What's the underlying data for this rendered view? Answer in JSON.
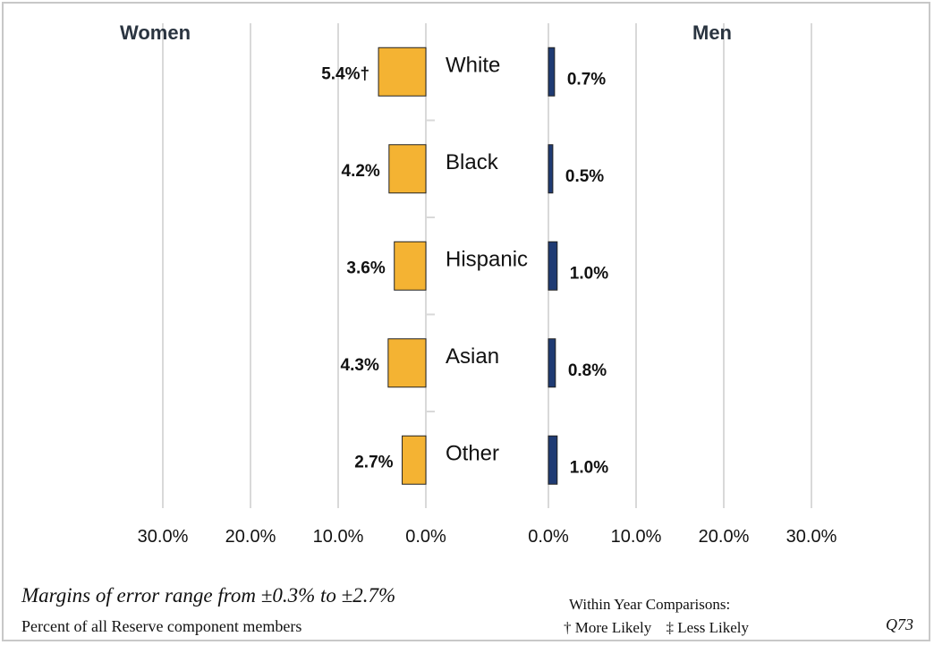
{
  "chart_data": {
    "type": "bar",
    "orientation": "horizontal-butterfly",
    "panels": {
      "left": "Women",
      "right": "Men"
    },
    "categories": [
      "White",
      "Black",
      "Hispanic",
      "Asian",
      "Other"
    ],
    "series": [
      {
        "name": "Women",
        "values": [
          5.4,
          4.2,
          3.6,
          4.3,
          2.7
        ],
        "labels": [
          "5.4%†",
          "4.2%",
          "3.6%",
          "4.3%",
          "2.7%"
        ],
        "color": "#f4b333"
      },
      {
        "name": "Men",
        "values": [
          0.7,
          0.5,
          1.0,
          0.8,
          1.0
        ],
        "labels": [
          "0.7%",
          "0.5%",
          "1.0%",
          "0.8%",
          "1.0%"
        ],
        "color": "#1f3b73"
      }
    ],
    "xlim": [
      0,
      30
    ],
    "left_tick_labels": [
      "30.0%",
      "20.0%",
      "10.0%",
      "0.0%"
    ],
    "right_tick_labels": [
      "0.0%",
      "10.0%",
      "20.0%",
      "30.0%"
    ],
    "grid": true
  },
  "footer": {
    "margins_note": "Margins of error range from ±0.3%  to ±2.7%",
    "population_note": "Percent of all Reserve component members",
    "comparison_title": "Within  Year Comparisons:",
    "more_likely": "† More Likely",
    "less_likely": "‡ Less Likely",
    "question_id": "Q73"
  },
  "colors": {
    "women_bar": "#f4b333",
    "men_bar": "#1f3b73",
    "grid": "#d9d9d9",
    "bar_outline": "#222222"
  }
}
